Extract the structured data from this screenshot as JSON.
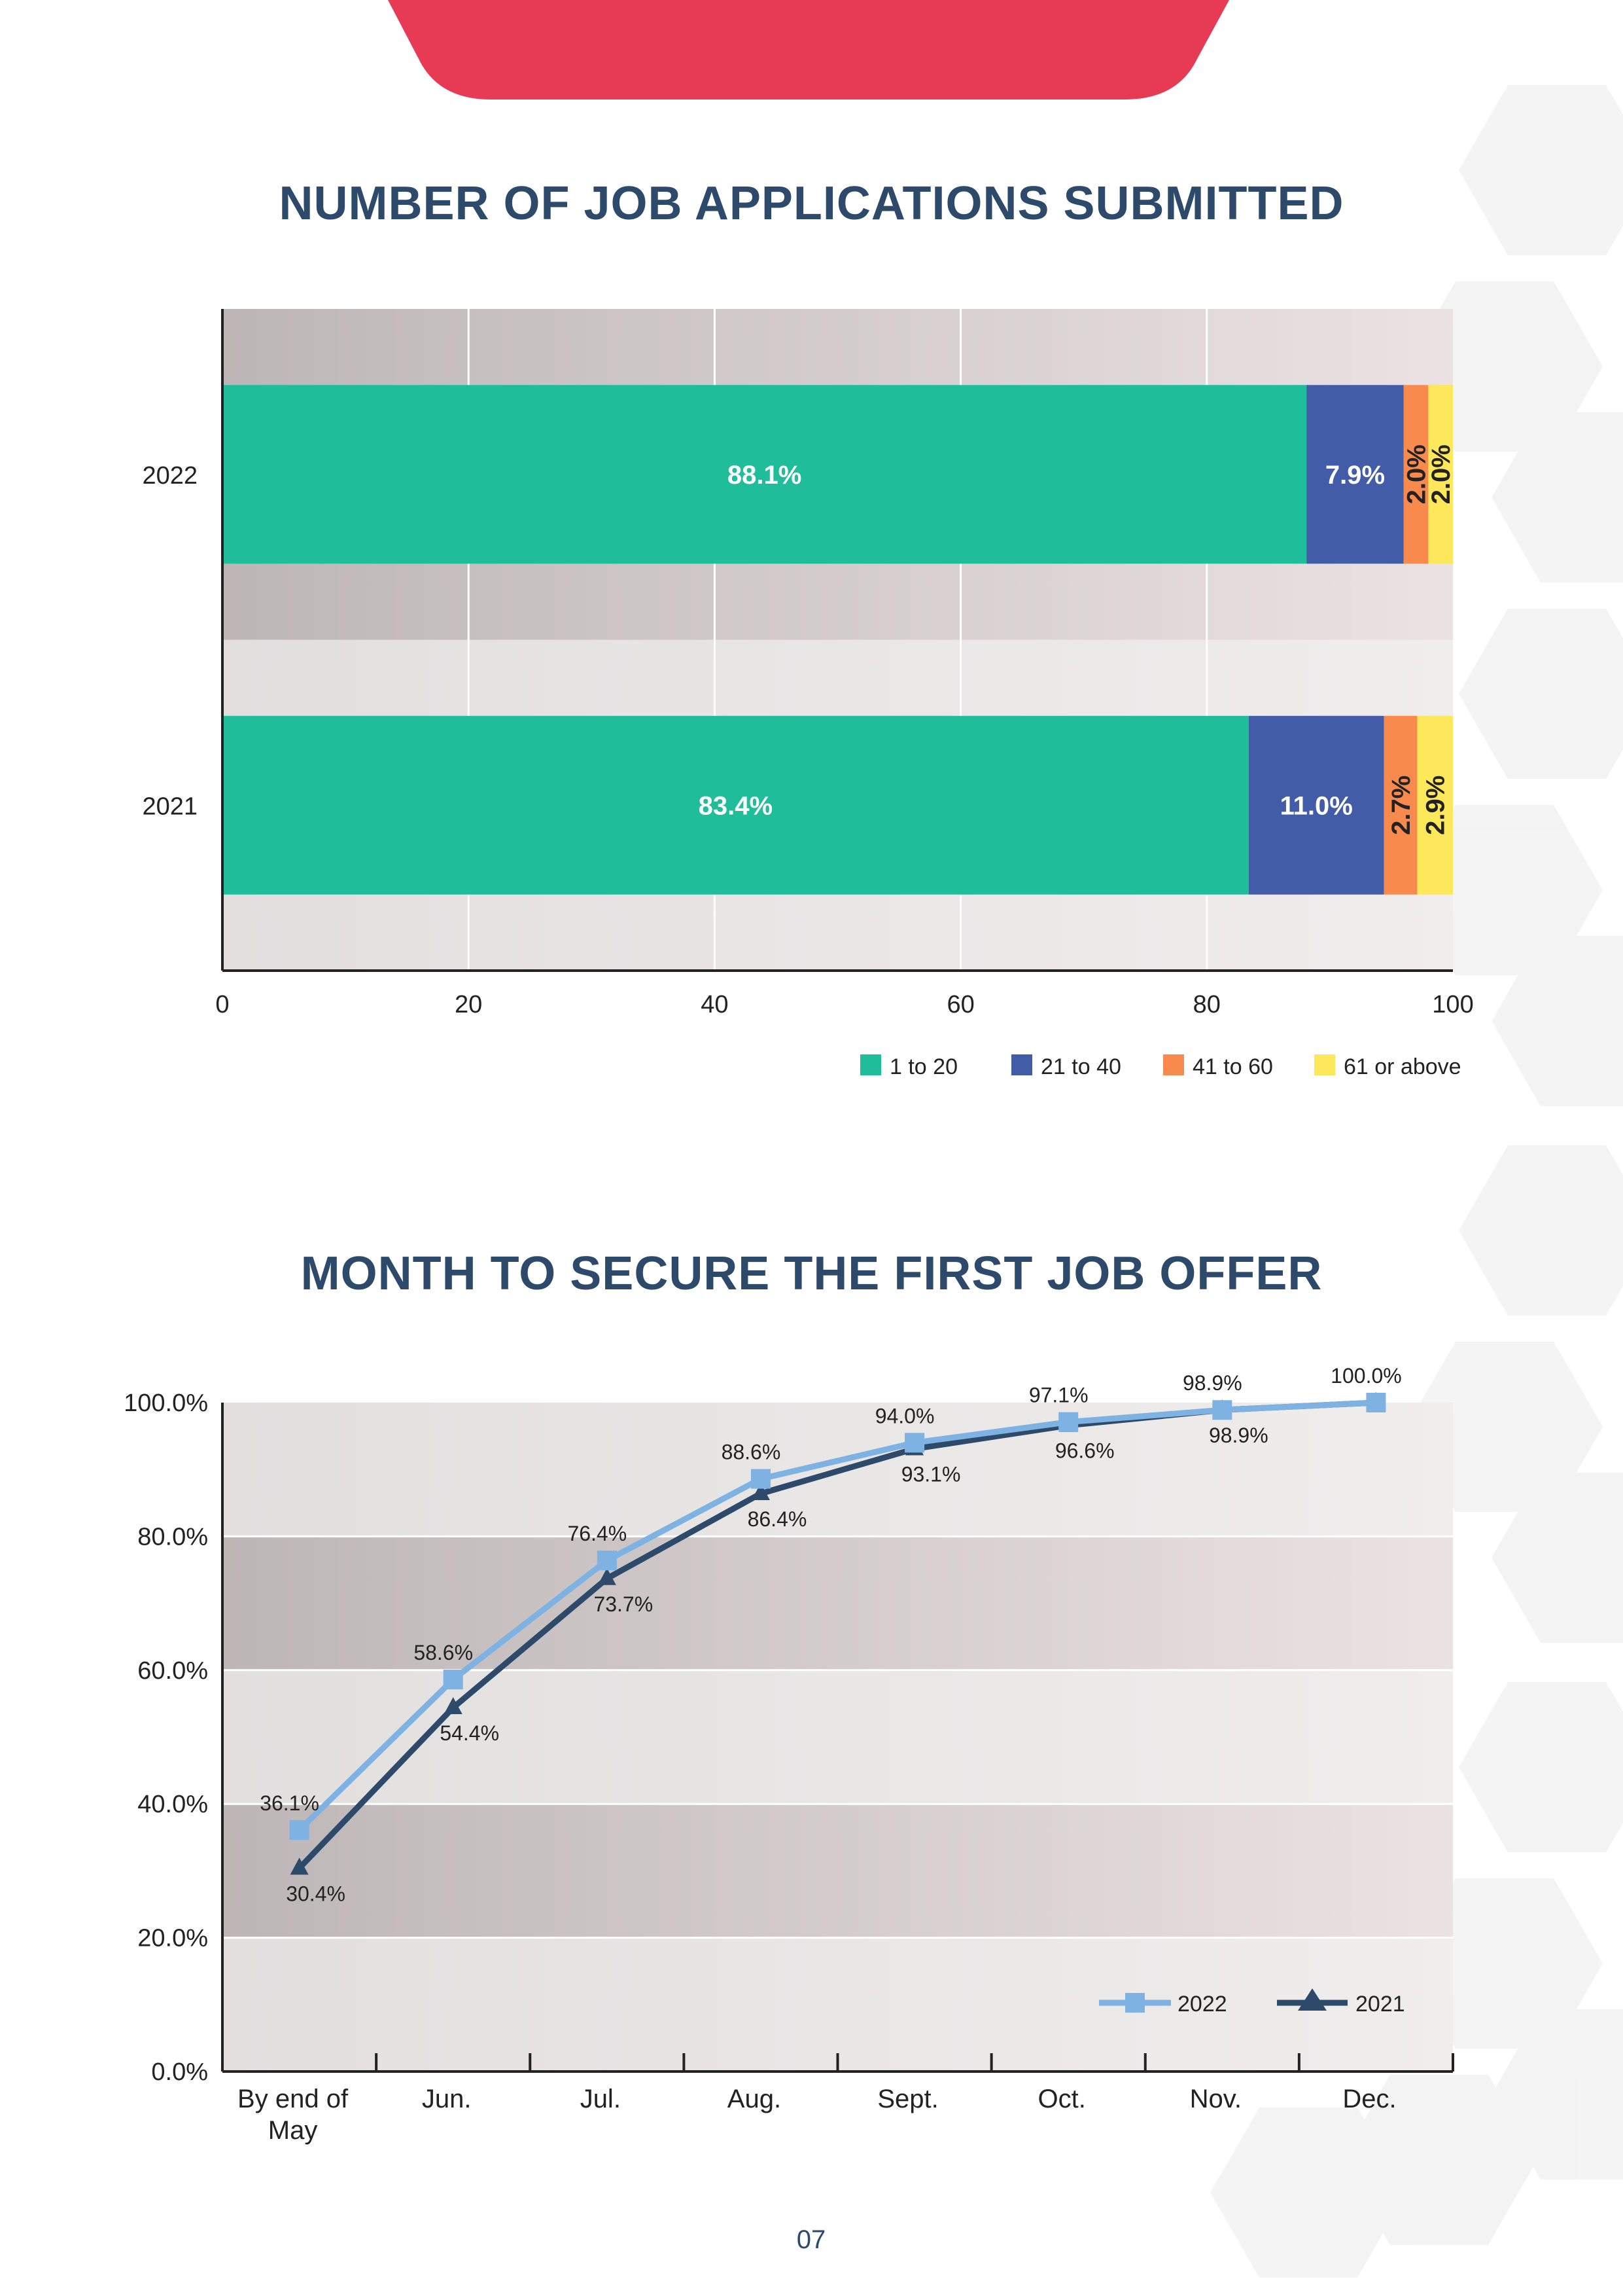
{
  "page_number": "07",
  "colors": {
    "header_red": "#e63a55",
    "title": "#2e4a6b"
  },
  "chart_data": [
    {
      "type": "bar",
      "orientation": "horizontal-stacked",
      "title": "NUMBER OF JOB APPLICATIONS SUBMITTED",
      "categories": [
        "2022",
        "2021"
      ],
      "series": [
        {
          "name": "1 to 20",
          "color": "#1fbd99",
          "values": [
            88.1,
            83.4
          ],
          "labels": [
            "88.1%",
            "83.4%"
          ]
        },
        {
          "name": "21 to 40",
          "color": "#435ca8",
          "values": [
            7.9,
            11.0
          ],
          "labels": [
            "7.9%",
            "11.0%"
          ]
        },
        {
          "name": "41 to 60",
          "color": "#f88a4e",
          "values": [
            2.0,
            2.7
          ],
          "labels": [
            "2.0%",
            "2.7%"
          ]
        },
        {
          "name": "61 or above",
          "color": "#fde75a",
          "values": [
            2.0,
            2.9
          ],
          "labels": [
            "2.0%",
            "2.9%"
          ]
        }
      ],
      "xlim": [
        0,
        100
      ],
      "xticks": [
        "0",
        "20",
        "40",
        "60",
        "80",
        "100"
      ],
      "grid": true,
      "legend": "bottom-right"
    },
    {
      "type": "line",
      "title": "MONTH TO SECURE THE FIRST JOB OFFER",
      "categories": [
        [
          "By end of",
          "May"
        ],
        [
          "Jun."
        ],
        [
          "Jul."
        ],
        [
          "Aug."
        ],
        [
          "Sept."
        ],
        [
          "Oct."
        ],
        [
          "Nov."
        ],
        [
          "Dec."
        ]
      ],
      "series": [
        {
          "name": "2022",
          "color": "#7eb2e2",
          "marker": "square",
          "values": [
            36.1,
            58.6,
            76.4,
            88.6,
            94.0,
            97.1,
            98.9,
            100.0
          ],
          "labels": [
            "36.1%",
            "58.6%",
            "76.4%",
            "88.6%",
            "94.0%",
            "97.1%",
            "98.9%",
            "100.0%"
          ]
        },
        {
          "name": "2021",
          "color": "#2e4a6b",
          "marker": "triangle",
          "values": [
            30.4,
            54.4,
            73.7,
            86.4,
            93.1,
            96.6,
            98.9,
            100.0
          ],
          "labels": [
            "30.4%",
            "54.4%",
            "73.7%",
            "86.4%",
            "93.1%",
            "96.6%",
            "98.9%",
            ""
          ]
        }
      ],
      "ylim": [
        0,
        100
      ],
      "yticks": [
        "0.0%",
        "20.0%",
        "40.0%",
        "60.0%",
        "80.0%",
        "100.0%"
      ],
      "grid": true,
      "legend": "bottom-right"
    }
  ]
}
